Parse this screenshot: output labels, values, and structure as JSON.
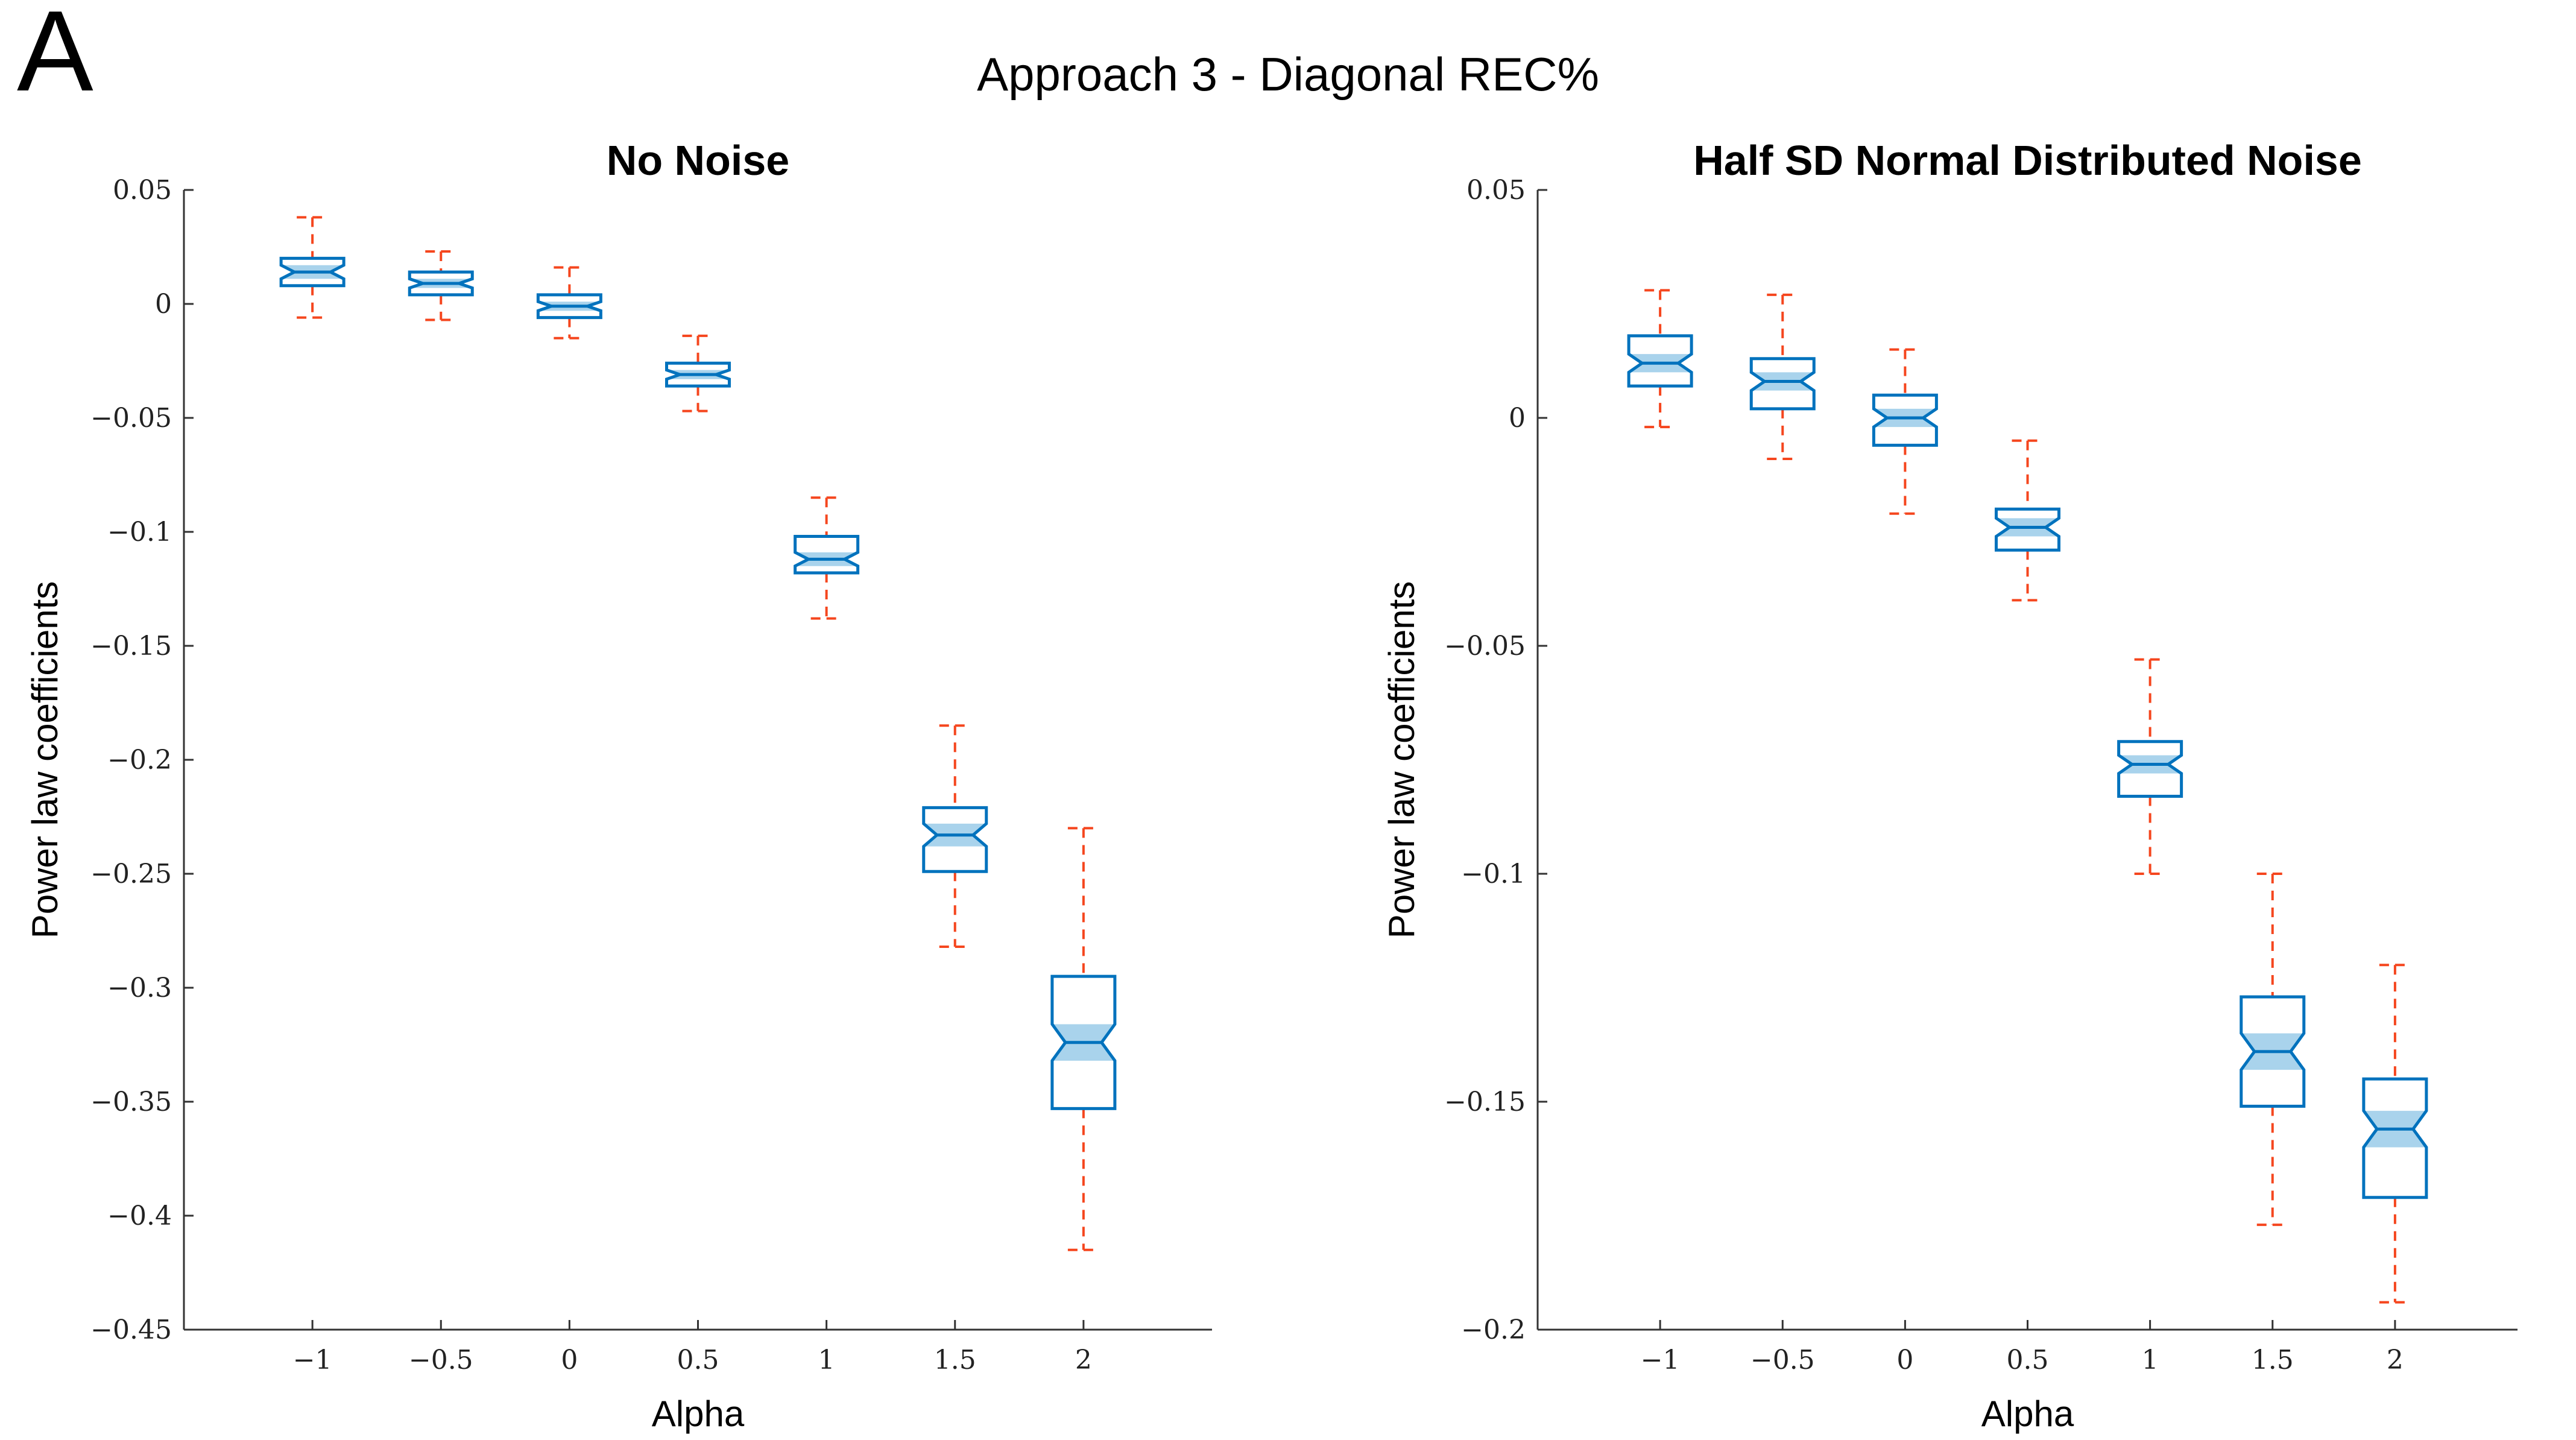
{
  "figure": {
    "panel_letter": "A",
    "title": "Approach 3 - Diagonal REC%"
  },
  "colors": {
    "box": "#0072BD",
    "box_fill": "#ffffff",
    "notch_band": "#a9d3ec",
    "whisker": "#F5461E",
    "axis": "#333333"
  },
  "chart_data": [
    {
      "type": "boxplot",
      "title": "No Noise",
      "xlabel": "Alpha",
      "ylabel": "Power law coefficients",
      "xlim": [
        -1.5,
        2.5
      ],
      "ylim": [
        -0.45,
        0.05
      ],
      "xticks": [
        -1,
        -0.5,
        0,
        0.5,
        1,
        1.5,
        2
      ],
      "xtick_labels": [
        "−1",
        "−0.5",
        "0",
        "0.5",
        "1",
        "1.5",
        "2"
      ],
      "yticks": [
        0.05,
        0,
        -0.05,
        -0.1,
        -0.15,
        -0.2,
        -0.25,
        -0.3,
        -0.35,
        -0.4,
        -0.45
      ],
      "ytick_labels": [
        "0.05",
        "0",
        "−0.05",
        "−0.1",
        "−0.15",
        "−0.2",
        "−0.25",
        "−0.3",
        "−0.35",
        "−0.4",
        "−0.45"
      ],
      "boxes": [
        {
          "x": -1,
          "whisker_low": -0.006,
          "q1": 0.008,
          "median": 0.014,
          "q3": 0.02,
          "whisker_high": 0.038,
          "notch_low": 0.011,
          "notch_high": 0.017
        },
        {
          "x": -0.5,
          "whisker_low": -0.007,
          "q1": 0.004,
          "median": 0.009,
          "q3": 0.014,
          "whisker_high": 0.023,
          "notch_low": 0.007,
          "notch_high": 0.011
        },
        {
          "x": 0,
          "whisker_low": -0.015,
          "q1": -0.006,
          "median": -0.001,
          "q3": 0.004,
          "whisker_high": 0.016,
          "notch_low": -0.003,
          "notch_high": 0.001
        },
        {
          "x": 0.5,
          "whisker_low": -0.047,
          "q1": -0.036,
          "median": -0.031,
          "q3": -0.026,
          "whisker_high": -0.014,
          "notch_low": -0.033,
          "notch_high": -0.029
        },
        {
          "x": 1,
          "whisker_low": -0.138,
          "q1": -0.118,
          "median": -0.112,
          "q3": -0.102,
          "whisker_high": -0.085,
          "notch_low": -0.115,
          "notch_high": -0.109
        },
        {
          "x": 1.5,
          "whisker_low": -0.282,
          "q1": -0.249,
          "median": -0.233,
          "q3": -0.221,
          "whisker_high": -0.185,
          "notch_low": -0.238,
          "notch_high": -0.228
        },
        {
          "x": 2,
          "whisker_low": -0.415,
          "q1": -0.353,
          "median": -0.324,
          "q3": -0.295,
          "whisker_high": -0.23,
          "notch_low": -0.332,
          "notch_high": -0.316
        }
      ]
    },
    {
      "type": "boxplot",
      "title": "Half SD Normal Distributed Noise",
      "xlabel": "Alpha",
      "ylabel": "Power law coefficients",
      "xlim": [
        -1.5,
        2.5
      ],
      "ylim": [
        -0.2,
        0.05
      ],
      "xticks": [
        -1,
        -0.5,
        0,
        0.5,
        1,
        1.5,
        2
      ],
      "xtick_labels": [
        "−1",
        "−0.5",
        "0",
        "0.5",
        "1",
        "1.5",
        "2"
      ],
      "yticks": [
        0.05,
        0,
        -0.05,
        -0.1,
        -0.15,
        -0.2
      ],
      "ytick_labels": [
        "0.05",
        "0",
        "−0.05",
        "−0.1",
        "−0.15",
        "−0.2"
      ],
      "boxes": [
        {
          "x": -1,
          "whisker_low": -0.002,
          "q1": 0.007,
          "median": 0.012,
          "q3": 0.018,
          "whisker_high": 0.028,
          "notch_low": 0.01,
          "notch_high": 0.014
        },
        {
          "x": -0.5,
          "whisker_low": -0.009,
          "q1": 0.002,
          "median": 0.008,
          "q3": 0.013,
          "whisker_high": 0.027,
          "notch_low": 0.006,
          "notch_high": 0.01
        },
        {
          "x": 0,
          "whisker_low": -0.021,
          "q1": -0.006,
          "median": 0.0,
          "q3": 0.005,
          "whisker_high": 0.015,
          "notch_low": -0.002,
          "notch_high": 0.002
        },
        {
          "x": 0.5,
          "whisker_low": -0.04,
          "q1": -0.029,
          "median": -0.024,
          "q3": -0.02,
          "whisker_high": -0.005,
          "notch_low": -0.026,
          "notch_high": -0.022
        },
        {
          "x": 1,
          "whisker_low": -0.1,
          "q1": -0.083,
          "median": -0.076,
          "q3": -0.071,
          "whisker_high": -0.053,
          "notch_low": -0.078,
          "notch_high": -0.074
        },
        {
          "x": 1.5,
          "whisker_low": -0.177,
          "q1": -0.151,
          "median": -0.139,
          "q3": -0.127,
          "whisker_high": -0.1,
          "notch_low": -0.143,
          "notch_high": -0.135
        },
        {
          "x": 2,
          "whisker_low": -0.194,
          "q1": -0.171,
          "median": -0.156,
          "q3": -0.145,
          "whisker_high": -0.12,
          "notch_low": -0.16,
          "notch_high": -0.152
        }
      ]
    }
  ]
}
